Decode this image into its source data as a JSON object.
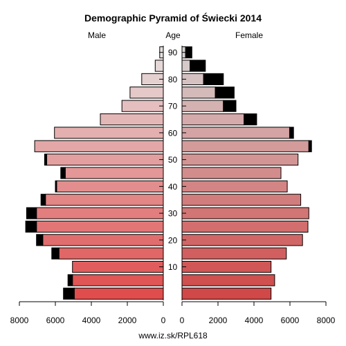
{
  "chart_data": {
    "type": "bar",
    "title": "Demographic Pyramid of Świecki 2014",
    "left_label": "Male",
    "center_label": "Age",
    "right_label": "Female",
    "footer": "www.iz.sk/RPL618",
    "age_ticks": [
      "10",
      "20",
      "30",
      "40",
      "50",
      "60",
      "70",
      "80",
      "90"
    ],
    "age_tick_values": [
      10,
      20,
      30,
      40,
      50,
      60,
      70,
      80,
      90
    ],
    "male_axis_ticks": [
      "8000",
      "6000",
      "4000",
      "2000",
      "0"
    ],
    "female_axis_ticks": [
      "0",
      "2000",
      "4000",
      "6000",
      "8000"
    ],
    "xlim": [
      0,
      8000
    ],
    "age_groups": [
      "0-4",
      "5-9",
      "10-14",
      "15-19",
      "20-24",
      "25-29",
      "30-34",
      "35-39",
      "40-44",
      "45-49",
      "50-54",
      "55-59",
      "60-64",
      "65-69",
      "70-74",
      "75-79",
      "80-84",
      "85-89",
      "90+"
    ],
    "male": [
      5550,
      5300,
      5050,
      6200,
      7050,
      7650,
      7600,
      6800,
      6000,
      5700,
      6600,
      7150,
      6050,
      3500,
      2300,
      1850,
      1200,
      450,
      200
    ],
    "male_excess": [
      600,
      250,
      0,
      400,
      350,
      600,
      550,
      250,
      70,
      250,
      120,
      0,
      0,
      0,
      0,
      0,
      0,
      0,
      0
    ],
    "female": [
      4950,
      5150,
      4950,
      5800,
      6700,
      7000,
      7050,
      6600,
      5850,
      5500,
      6450,
      7200,
      6200,
      4150,
      3000,
      2900,
      2300,
      1300,
      550
    ],
    "female_excess": [
      0,
      0,
      0,
      0,
      0,
      0,
      0,
      0,
      0,
      0,
      0,
      150,
      220,
      700,
      700,
      1050,
      1100,
      850,
      350
    ],
    "colors": {
      "bottom": "#e04d4d",
      "top": "#e6e0e0",
      "excess": "#000000",
      "border": "#000000",
      "background": "#ffffff"
    }
  }
}
